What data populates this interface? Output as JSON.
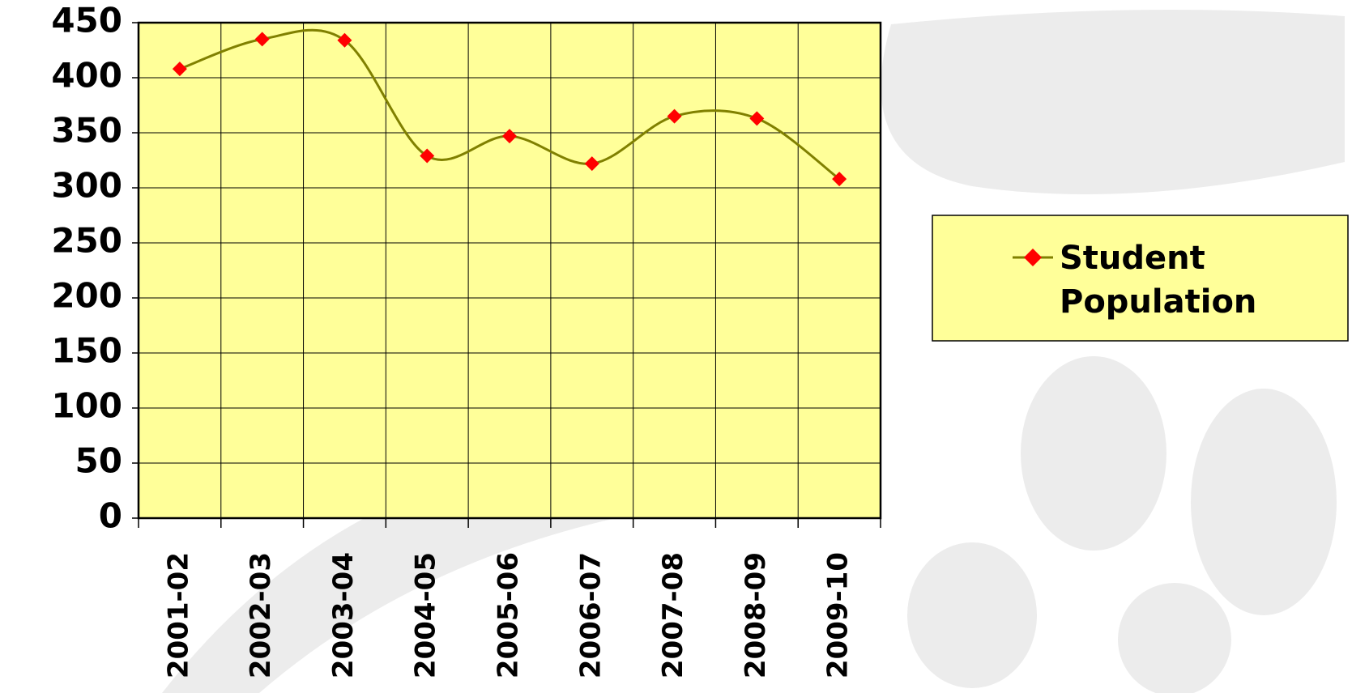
{
  "chart_data": {
    "type": "line",
    "categories": [
      "2001-02",
      "2002-03",
      "2003-04",
      "2004-05",
      "2005-06",
      "2006-07",
      "2007-08",
      "2008-09",
      "2009-10"
    ],
    "series": [
      {
        "name": "Student Population",
        "color": "#808000",
        "marker_color": "#ff0000",
        "values": [
          408,
          435,
          434,
          329,
          347,
          322,
          365,
          363,
          308
        ]
      }
    ],
    "ylim": [
      0,
      450
    ],
    "yticks": [
      0,
      50,
      100,
      150,
      200,
      250,
      300,
      350,
      400,
      450
    ],
    "grid": true,
    "legend": "right",
    "smooth": true
  }
}
